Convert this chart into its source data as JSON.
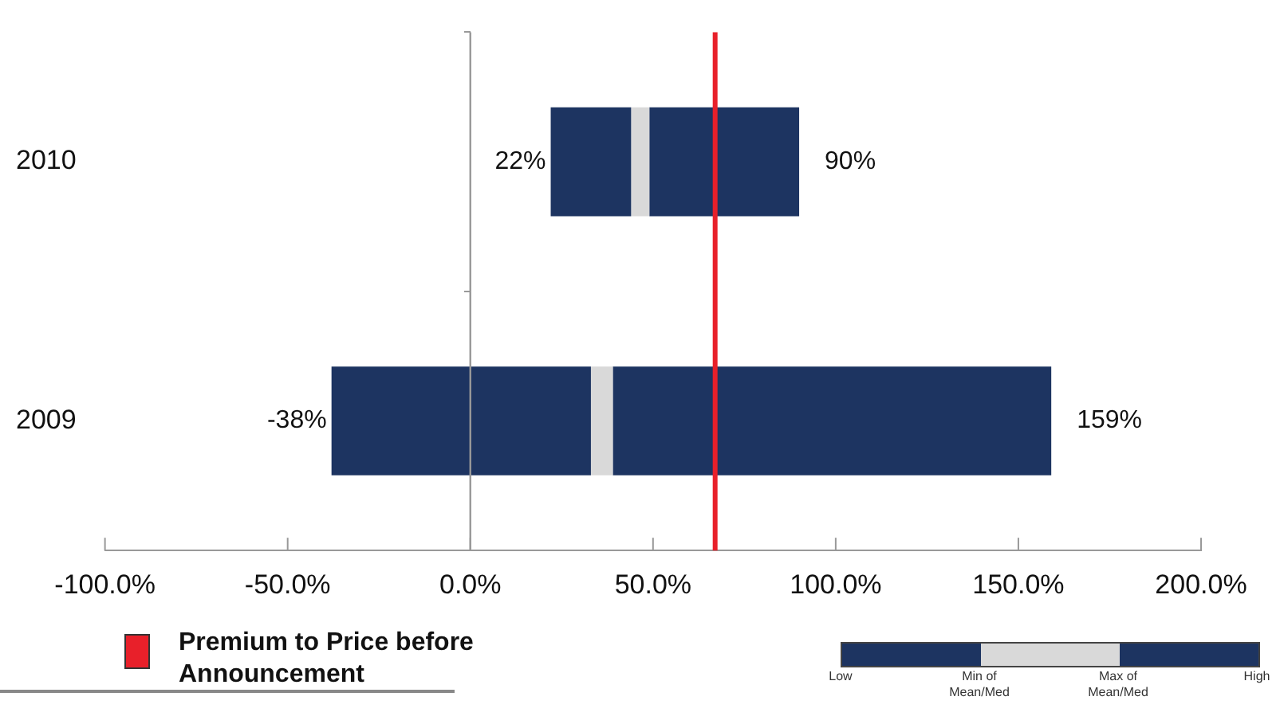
{
  "chart_data": {
    "type": "bar",
    "orientation": "horizontal",
    "categories": [
      "2010",
      "2009"
    ],
    "series": [
      {
        "color": "#1d3461",
        "base": [
          22,
          -38
        ],
        "values": [
          22,
          71
        ]
      },
      {
        "color": "#d9d9d9",
        "base": [
          44,
          33
        ],
        "values": [
          5,
          6
        ]
      },
      {
        "color": "#1d3461",
        "base": [
          49,
          39
        ],
        "values": [
          41,
          120
        ]
      }
    ],
    "xlim": [
      -100,
      200
    ],
    "xticks": [
      {
        "value": -100,
        "label": "-100.0%"
      },
      {
        "value": -50,
        "label": "-50.0%"
      },
      {
        "value": 0,
        "label": "0.0%"
      },
      {
        "value": 50,
        "label": "50.0%"
      },
      {
        "value": 100,
        "label": "100.0%"
      },
      {
        "value": 150,
        "label": "150.0%"
      },
      {
        "value": 200,
        "label": "200.0%"
      }
    ],
    "ref_lines": [
      {
        "axis": "x",
        "value": 67,
        "label": "Premium to Price before Announcement",
        "color": "#e8202a"
      },
      {
        "axis": "x",
        "value": 0,
        "color": "#999999"
      }
    ],
    "annotations": [
      {
        "text": "22%",
        "x": 22,
        "y": "2010"
      },
      {
        "text": "90%",
        "x": 90,
        "y": "2010"
      },
      {
        "text": "-38%",
        "x": -38,
        "y": "2009"
      },
      {
        "text": "159%",
        "x": 159,
        "y": "2009"
      },
      "Low",
      "Min of Mean/Med",
      "Max of Mean/Med",
      "High"
    ],
    "grid": false
  }
}
